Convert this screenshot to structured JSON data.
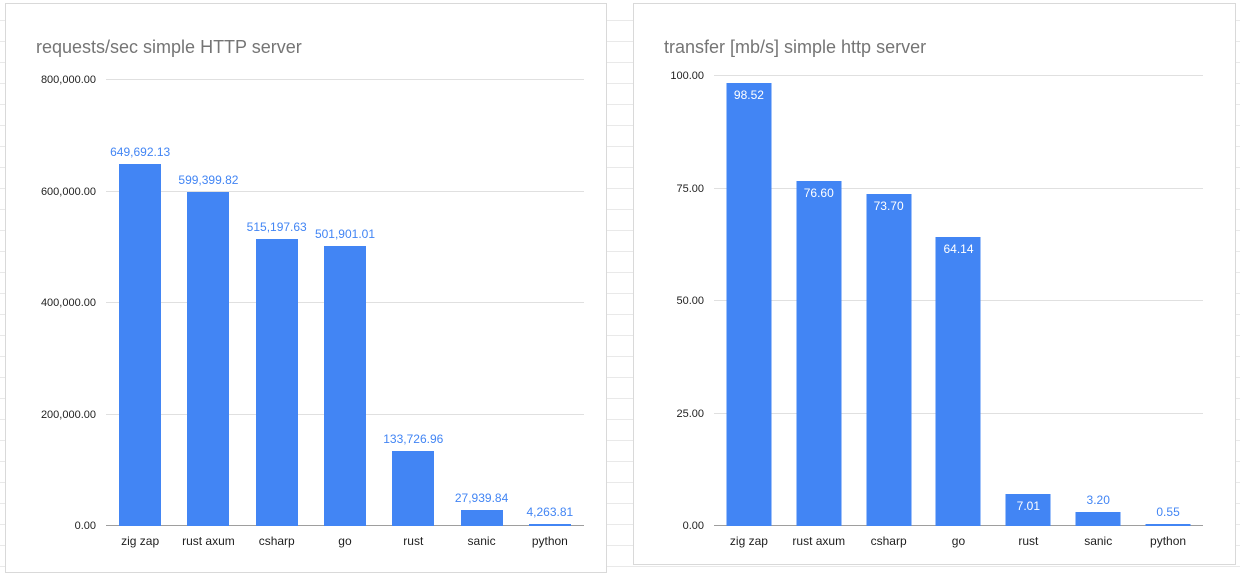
{
  "page": {
    "background_color": "#ffffff",
    "grid_line_color": "#e9e9e9"
  },
  "chart_data": [
    {
      "type": "bar",
      "title": "requests/sec simple HTTP server",
      "categories": [
        "zig zap",
        "rust axum",
        "csharp",
        "go",
        "rust",
        "sanic",
        "python"
      ],
      "values": [
        649692.13,
        599399.82,
        515197.63,
        501901.01,
        133726.96,
        27939.84,
        4263.81
      ],
      "value_labels": [
        "649,692.13",
        "599,399.82",
        "515,197.63",
        "501,901.01",
        "133,726.96",
        "27,939.84",
        "4,263.81"
      ],
      "label_inside": [
        false,
        false,
        false,
        false,
        false,
        false,
        false
      ],
      "ylim": [
        0,
        800000
      ],
      "yticks": [
        0,
        200000,
        400000,
        600000,
        800000
      ],
      "ytick_labels": [
        "0.00",
        "200,000.00",
        "400,000.00",
        "600,000.00",
        "800,000.00"
      ],
      "xlabel": "",
      "ylabel": "",
      "legend": "none",
      "grid": true,
      "bar_color": "#4285f4",
      "label_color_outside": "#4285f4",
      "label_color_inside": "#ffffff",
      "title_color": "#757575"
    },
    {
      "type": "bar",
      "title": "transfer [mb/s] simple http server",
      "categories": [
        "zig zap",
        "rust axum",
        "csharp",
        "go",
        "rust",
        "sanic",
        "python"
      ],
      "values": [
        98.52,
        76.6,
        73.7,
        64.14,
        7.01,
        3.2,
        0.55
      ],
      "value_labels": [
        "98.52",
        "76.60",
        "73.70",
        "64.14",
        "7.01",
        "3.20",
        "0.55"
      ],
      "label_inside": [
        true,
        true,
        true,
        true,
        true,
        false,
        false
      ],
      "ylim": [
        0,
        100
      ],
      "yticks": [
        0,
        25,
        50,
        75,
        100
      ],
      "ytick_labels": [
        "0.00",
        "25.00",
        "50.00",
        "75.00",
        "100.00"
      ],
      "xlabel": "",
      "ylabel": "",
      "legend": "none",
      "grid": true,
      "bar_color": "#4285f4",
      "label_color_outside": "#4285f4",
      "label_color_inside": "#ffffff",
      "title_color": "#757575"
    }
  ]
}
